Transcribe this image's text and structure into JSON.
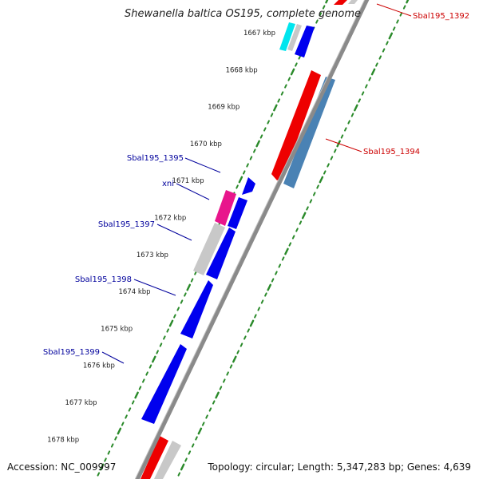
{
  "title": "Shewanella baltica OS195, complete genome",
  "accession": "Accession: NC_009997",
  "topology": "Topology: circular; Length: 5,347,283 bp; Genes: 4,639",
  "colors": {
    "forward_gene": "#0000ee",
    "reverse_gene": "#ee0000",
    "pseudo_gene": "#c8c8c8",
    "rna_gene": "#4a82b4",
    "cyan_gene": "#00e5ee",
    "magenta_gene": "#e8158c",
    "tick": "#2a8a2a",
    "backbone": "#8a8a8a",
    "label_forward": "#00009c",
    "label_reverse": "#cc0000"
  },
  "scale": {
    "unit": "kbp",
    "ticks": [
      "1667 kbp",
      "1668 kbp",
      "1669 kbp",
      "1670 kbp",
      "1671 kbp",
      "1672 kbp",
      "1673 kbp",
      "1674 kbp",
      "1675 kbp",
      "1676 kbp",
      "1677 kbp",
      "1678 kbp"
    ]
  },
  "labels": {
    "left": [
      {
        "text": "Sbal195_1395",
        "name": "label-sbal195-1395"
      },
      {
        "text": "xni",
        "name": "label-xni"
      },
      {
        "text": "Sbal195_1397",
        "name": "label-sbal195-1397"
      },
      {
        "text": "Sbal195_1398",
        "name": "label-sbal195-1398"
      },
      {
        "text": "Sbal195_1399",
        "name": "label-sbal195-1399"
      }
    ],
    "right": [
      {
        "text": "Sbal195_1392",
        "name": "label-sbal195-1392"
      },
      {
        "text": "Sbal195_1394",
        "name": "label-sbal195-1394"
      }
    ]
  }
}
